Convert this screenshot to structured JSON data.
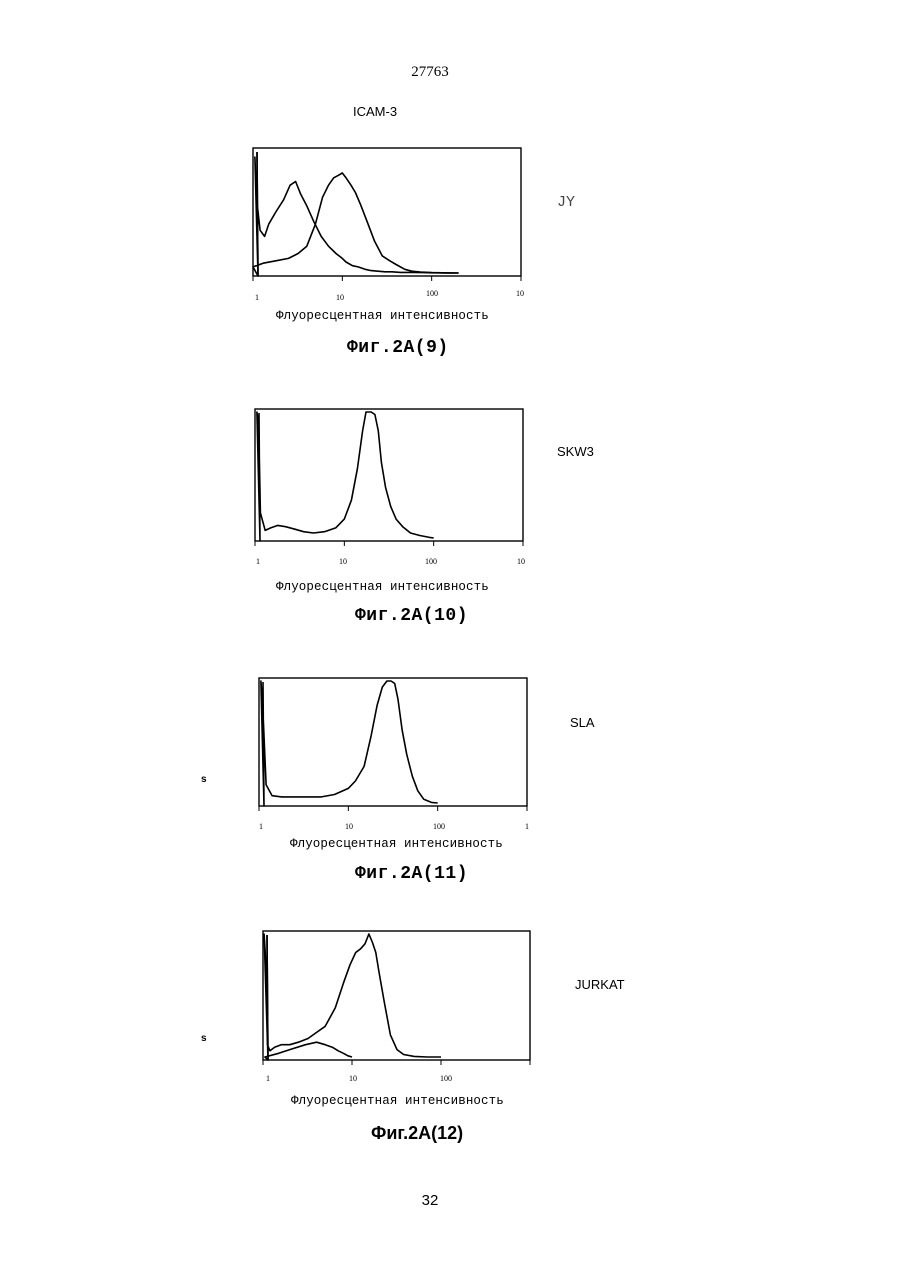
{
  "page": {
    "header_number": "27763",
    "page_number": "32"
  },
  "marker_label": "ICAM-3",
  "x_axis_label": "Флуоресцентная интенсивность",
  "panels": [
    {
      "id": "9",
      "cell_line": "JY",
      "caption": "Фиг.2A(9)",
      "y_label": "",
      "tick_labels": [
        "1",
        "10",
        "100",
        "10"
      ]
    },
    {
      "id": "10",
      "cell_line": "SKW3",
      "caption": "Фиг.2A(10)",
      "y_label": "",
      "tick_labels": [
        "1",
        "10",
        "100",
        "10"
      ]
    },
    {
      "id": "11",
      "cell_line": "SLA",
      "caption": "Фиг.2A(11)",
      "y_label": "s",
      "tick_labels": [
        "1",
        "10",
        "100",
        "1"
      ]
    },
    {
      "id": "12",
      "cell_line": "JURKAT",
      "caption": "Фиг.2A(12)",
      "y_label": "s",
      "tick_labels": [
        "1",
        "10",
        "100"
      ]
    }
  ],
  "chart_data": [
    {
      "type": "line",
      "x_scale": "log",
      "xlim": [
        1,
        1000
      ],
      "series": [
        {
          "x": [
            1.05,
            1.1,
            1.2,
            1.35,
            1.5,
            1.8,
            2.2,
            2.6,
            3.0,
            3.4,
            4.0,
            4.8,
            5.8,
            7,
            8.5,
            10,
            11,
            13,
            15,
            18,
            21,
            25,
            30,
            36,
            45,
            60,
            80,
            100,
            150,
            200
          ],
          "y": [
            0.95,
            0.6,
            0.35,
            0.3,
            0.4,
            0.5,
            0.6,
            0.72,
            0.75,
            0.65,
            0.55,
            0.42,
            0.3,
            0.22,
            0.16,
            0.12,
            0.09,
            0.06,
            0.05,
            0.03,
            0.02,
            0.015,
            0.01,
            0.01,
            0.005,
            0.005,
            0.003,
            0.002,
            0.001,
            0
          ]
        },
        {
          "x": [
            1,
            1.3,
            1.8,
            2.5,
            3.2,
            4,
            5,
            6,
            7,
            8,
            9,
            10,
            11,
            12.5,
            14,
            16,
            19,
            23,
            28,
            34,
            40,
            50,
            60,
            75,
            100,
            150,
            200
          ],
          "y": [
            0.05,
            0.08,
            0.1,
            0.12,
            0.16,
            0.22,
            0.4,
            0.62,
            0.72,
            0.78,
            0.8,
            0.82,
            0.78,
            0.72,
            0.66,
            0.56,
            0.42,
            0.26,
            0.14,
            0.1,
            0.07,
            0.03,
            0.015,
            0.008,
            0.003,
            0.001,
            0
          ]
        }
      ]
    },
    {
      "type": "line",
      "x_scale": "log",
      "xlim": [
        1,
        1000
      ],
      "series": [
        {
          "x": [
            1.05,
            1.1,
            1.15,
            1.3,
            1.5,
            1.8,
            2.2,
            2.8,
            3.5,
            4.5,
            6,
            8,
            10,
            12,
            14,
            16,
            17.5,
            19,
            20,
            22,
            24,
            26,
            29,
            33,
            38,
            45,
            55,
            70,
            90,
            100
          ],
          "y": [
            1,
            0.9,
            0.2,
            0.06,
            0.08,
            0.1,
            0.09,
            0.07,
            0.05,
            0.04,
            0.05,
            0.08,
            0.15,
            0.3,
            0.55,
            0.85,
            1.0,
            1.0,
            1.0,
            0.98,
            0.85,
            0.6,
            0.4,
            0.25,
            0.15,
            0.09,
            0.04,
            0.02,
            0.005,
            0
          ]
        }
      ]
    },
    {
      "type": "line",
      "x_scale": "log",
      "xlim": [
        1,
        1000
      ],
      "series": [
        {
          "x": [
            1.05,
            1.1,
            1.2,
            1.4,
            1.8,
            2.5,
            3.5,
            5,
            7,
            10,
            12,
            15,
            18,
            21,
            24,
            27,
            30,
            33,
            36,
            40,
            45,
            52,
            60,
            70,
            85,
            100
          ],
          "y": [
            1,
            0.8,
            0.15,
            0.06,
            0.05,
            0.05,
            0.05,
            0.05,
            0.07,
            0.12,
            0.18,
            0.3,
            0.55,
            0.8,
            0.95,
            1.0,
            1.0,
            0.98,
            0.85,
            0.6,
            0.4,
            0.22,
            0.1,
            0.03,
            0.005,
            0
          ]
        }
      ]
    },
    {
      "type": "line",
      "x_scale": "log",
      "xlim": [
        1,
        1000
      ],
      "series": [
        {
          "x": [
            1.03,
            1.08,
            1.12,
            1.2,
            1.35,
            1.6,
            2.0,
            2.5,
            3.2,
            4,
            5,
            6.5,
            8,
            9.5,
            11,
            12.5,
            14,
            15.5,
            17,
            18.5,
            20,
            23,
            27,
            32,
            38,
            50,
            70,
            100
          ],
          "y": [
            1,
            0.75,
            0.1,
            0.05,
            0.08,
            0.1,
            0.1,
            0.12,
            0.15,
            0.2,
            0.25,
            0.4,
            0.6,
            0.75,
            0.85,
            0.88,
            0.92,
            1.0,
            0.93,
            0.85,
            0.7,
            0.45,
            0.18,
            0.06,
            0.02,
            0.005,
            0,
            0
          ]
        },
        {
          "x": [
            1.05,
            1.5,
            2,
            3,
            4,
            5,
            6,
            7,
            8,
            9,
            10
          ],
          "y": [
            0,
            0.03,
            0.06,
            0.1,
            0.12,
            0.1,
            0.08,
            0.05,
            0.03,
            0.01,
            0
          ]
        }
      ]
    }
  ]
}
